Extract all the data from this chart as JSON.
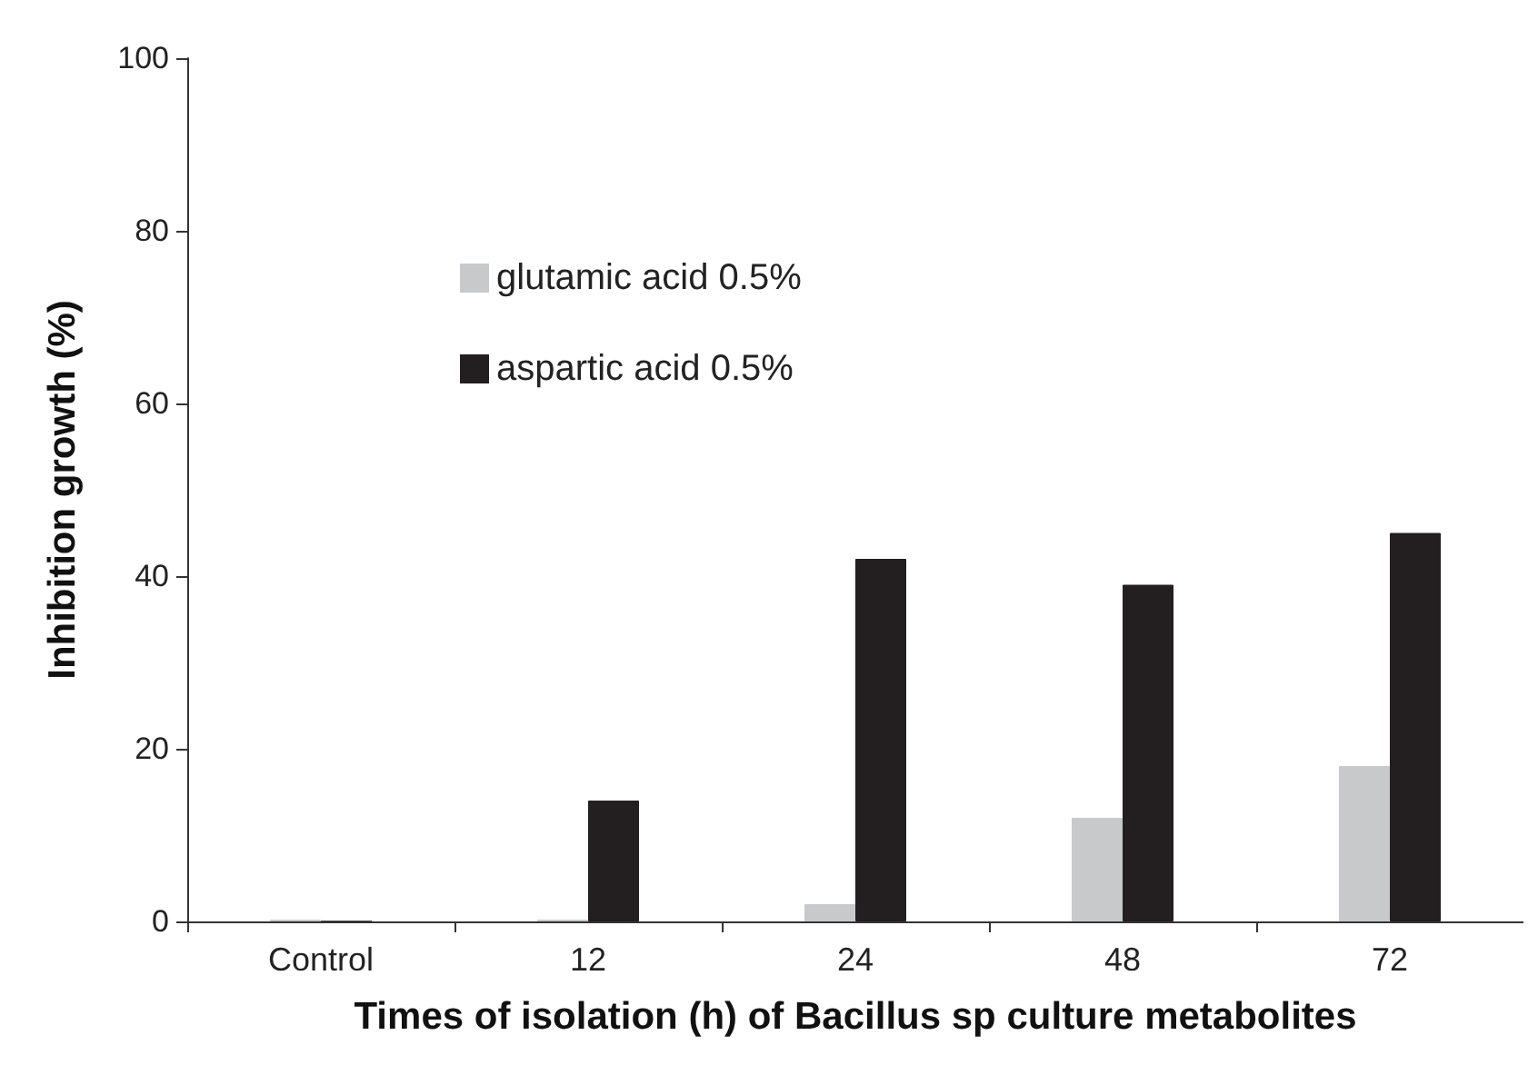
{
  "chart_data": {
    "type": "bar",
    "xlabel": "Times of isolation (h) of Bacillus sp culture metabolites",
    "ylabel": "Inhibition growth (%)",
    "categories": [
      "Control",
      "12",
      "24",
      "48",
      "72"
    ],
    "series": [
      {
        "name": "glutamic acid 0.5%",
        "color": "#c8c9cb",
        "values": [
          0.2,
          0.2,
          2,
          12,
          18
        ]
      },
      {
        "name": "aspartic acid 0.5%",
        "color": "#231f20",
        "values": [
          0,
          14,
          42,
          39,
          45
        ]
      }
    ],
    "ylim": [
      0,
      100
    ],
    "yticks": [
      0,
      20,
      40,
      60,
      80,
      100
    ],
    "grid": false,
    "legend": "top left"
  }
}
